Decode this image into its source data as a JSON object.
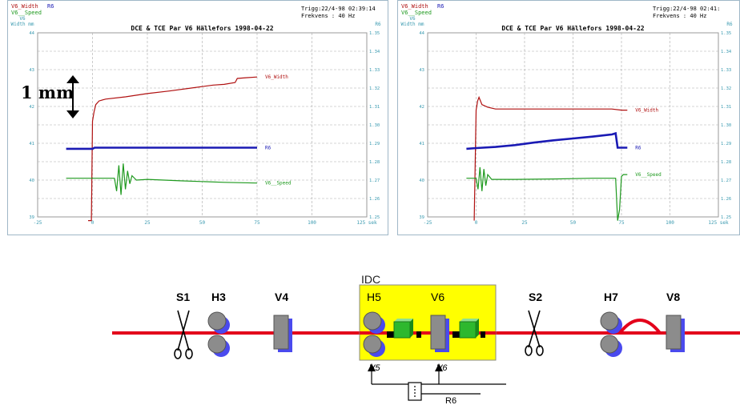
{
  "chart_data": [
    {
      "type": "line",
      "title": "DCE & TCE Par V6 Hällefors 1998-04-22",
      "legend": [
        "V6_Width",
        "R6",
        "V6__Speed"
      ],
      "trigger": "Trigg:22/4-98 02:39:14",
      "frequency": "Frekvens : 40 Hz",
      "left_axis_label": "V6\nWidth mm",
      "right_axis_label": "R6",
      "x_ticks": [
        "-25",
        "0",
        "25",
        "50",
        "75",
        "100",
        "125 sek"
      ],
      "x_range": [
        -25,
        125
      ],
      "y_left_ticks": [
        "44",
        "43",
        "42",
        "41",
        "40",
        "39"
      ],
      "y_right_ticks": [
        "1.35",
        "1.34",
        "1.33",
        "1.32",
        "1.31",
        "1.30",
        "1.29",
        "1.28",
        "1.27",
        "1.26",
        "1.25"
      ],
      "series": [
        {
          "name": "V6_Width",
          "label": "V6_Width",
          "color": "#b01010",
          "points": [
            [
              -2,
              38.9
            ],
            [
              -0.5,
              38.9
            ],
            [
              0,
              41.6
            ],
            [
              0.7,
              41.85
            ],
            [
              1.5,
              42.05
            ],
            [
              3,
              42.15
            ],
            [
              6,
              42.2
            ],
            [
              15,
              42.26
            ],
            [
              25,
              42.35
            ],
            [
              35,
              42.42
            ],
            [
              45,
              42.5
            ],
            [
              55,
              42.58
            ],
            [
              60,
              42.6
            ],
            [
              65,
              42.65
            ],
            [
              66,
              42.76
            ],
            [
              70,
              42.78
            ],
            [
              75,
              42.8
            ]
          ]
        },
        {
          "name": "R6",
          "label": "R6",
          "color": "#1a1ab4",
          "points": [
            [
              -12,
              40.85
            ],
            [
              0,
              40.85
            ],
            [
              1,
              40.88
            ],
            [
              30,
              40.88
            ],
            [
              60,
              40.88
            ],
            [
              75,
              40.88
            ]
          ]
        },
        {
          "name": "V6__Speed",
          "label": "V6__Speed",
          "color": "#1f9a1f",
          "points": [
            [
              -12,
              40.05
            ],
            [
              10,
              40.05
            ],
            [
              11,
              39.7
            ],
            [
              12,
              40.4
            ],
            [
              13,
              39.6
            ],
            [
              14,
              40.45
            ],
            [
              15,
              39.75
            ],
            [
              16,
              40.25
            ],
            [
              17,
              39.9
            ],
            [
              18,
              40.12
            ],
            [
              20,
              40.0
            ],
            [
              25,
              40.02
            ],
            [
              40,
              39.98
            ],
            [
              60,
              39.94
            ],
            [
              75,
              39.92
            ]
          ]
        }
      ]
    },
    {
      "type": "line",
      "title": "DCE & TCE Par V6 Hällefors 1998-04-22",
      "legend": [
        "V6_Width",
        "R6",
        "V6__Speed"
      ],
      "trigger": "Trigg:22/4-98 02:41:",
      "frequency": "Frekvens : 40 Hz",
      "left_axis_label": "V6\nWidth mm",
      "right_axis_label": "R6",
      "x_ticks": [
        "-25",
        "0",
        "25",
        "50",
        "75",
        "100",
        "125 sek"
      ],
      "x_range": [
        -25,
        125
      ],
      "y_left_ticks": [
        "44",
        "43",
        "42",
        "41",
        "40",
        "39"
      ],
      "y_right_ticks": [
        "1.35",
        "1.34",
        "1.33",
        "1.32",
        "1.31",
        "1.30",
        "1.29",
        "1.28",
        "1.27",
        "1.26",
        "1.25"
      ],
      "series": [
        {
          "name": "V6_Width",
          "label": "V6_Width",
          "color": "#b01010",
          "points": [
            [
              -1,
              38.9
            ],
            [
              0,
              41.9
            ],
            [
              0.8,
              42.15
            ],
            [
              1.5,
              42.25
            ],
            [
              3,
              42.05
            ],
            [
              6,
              41.98
            ],
            [
              10,
              41.93
            ],
            [
              20,
              41.93
            ],
            [
              30,
              41.93
            ],
            [
              40,
              41.93
            ],
            [
              50,
              41.93
            ],
            [
              60,
              41.93
            ],
            [
              70,
              41.93
            ],
            [
              75,
              41.9
            ],
            [
              78,
              41.9
            ]
          ]
        },
        {
          "name": "R6",
          "label": "R6",
          "color": "#1a1ab4",
          "points": [
            [
              -5,
              40.85
            ],
            [
              0,
              40.87
            ],
            [
              10,
              40.9
            ],
            [
              20,
              40.95
            ],
            [
              30,
              41.02
            ],
            [
              40,
              41.08
            ],
            [
              50,
              41.13
            ],
            [
              60,
              41.18
            ],
            [
              70,
              41.24
            ],
            [
              72,
              41.27
            ],
            [
              73,
              40.88
            ],
            [
              78,
              40.88
            ]
          ]
        },
        {
          "name": "V6__Speed",
          "label": "V6__Speed",
          "color": "#1f9a1f",
          "points": [
            [
              -5,
              40.05
            ],
            [
              0,
              40.05
            ],
            [
              1,
              39.75
            ],
            [
              2,
              40.35
            ],
            [
              3,
              39.7
            ],
            [
              4,
              40.3
            ],
            [
              5,
              39.85
            ],
            [
              6,
              40.15
            ],
            [
              8,
              40.02
            ],
            [
              20,
              40.02
            ],
            [
              40,
              40.03
            ],
            [
              60,
              40.05
            ],
            [
              70,
              40.05
            ],
            [
              72,
              40.05
            ],
            [
              73,
              38.9
            ],
            [
              74,
              39.2
            ],
            [
              75,
              40.1
            ],
            [
              76,
              40.15
            ],
            [
              78,
              40.15
            ]
          ]
        }
      ]
    }
  ],
  "annotation": {
    "text": "1 mm"
  },
  "diagram": {
    "labels": {
      "s1": "S1",
      "h3": "H3",
      "v4": "V4",
      "idc": "IDC",
      "h5": "H5",
      "v6": "V6",
      "s2": "S2",
      "h7": "H7",
      "v8": "V8",
      "v5_sig": "V5",
      "v6_sig": "V6",
      "r6": "R6"
    },
    "colors": {
      "line": "#e3001b",
      "idc_box": "#ffff00",
      "roll": "#8c8c8c",
      "roll_shadow": "#4a4aee",
      "sensor": "#2eb82e"
    }
  }
}
